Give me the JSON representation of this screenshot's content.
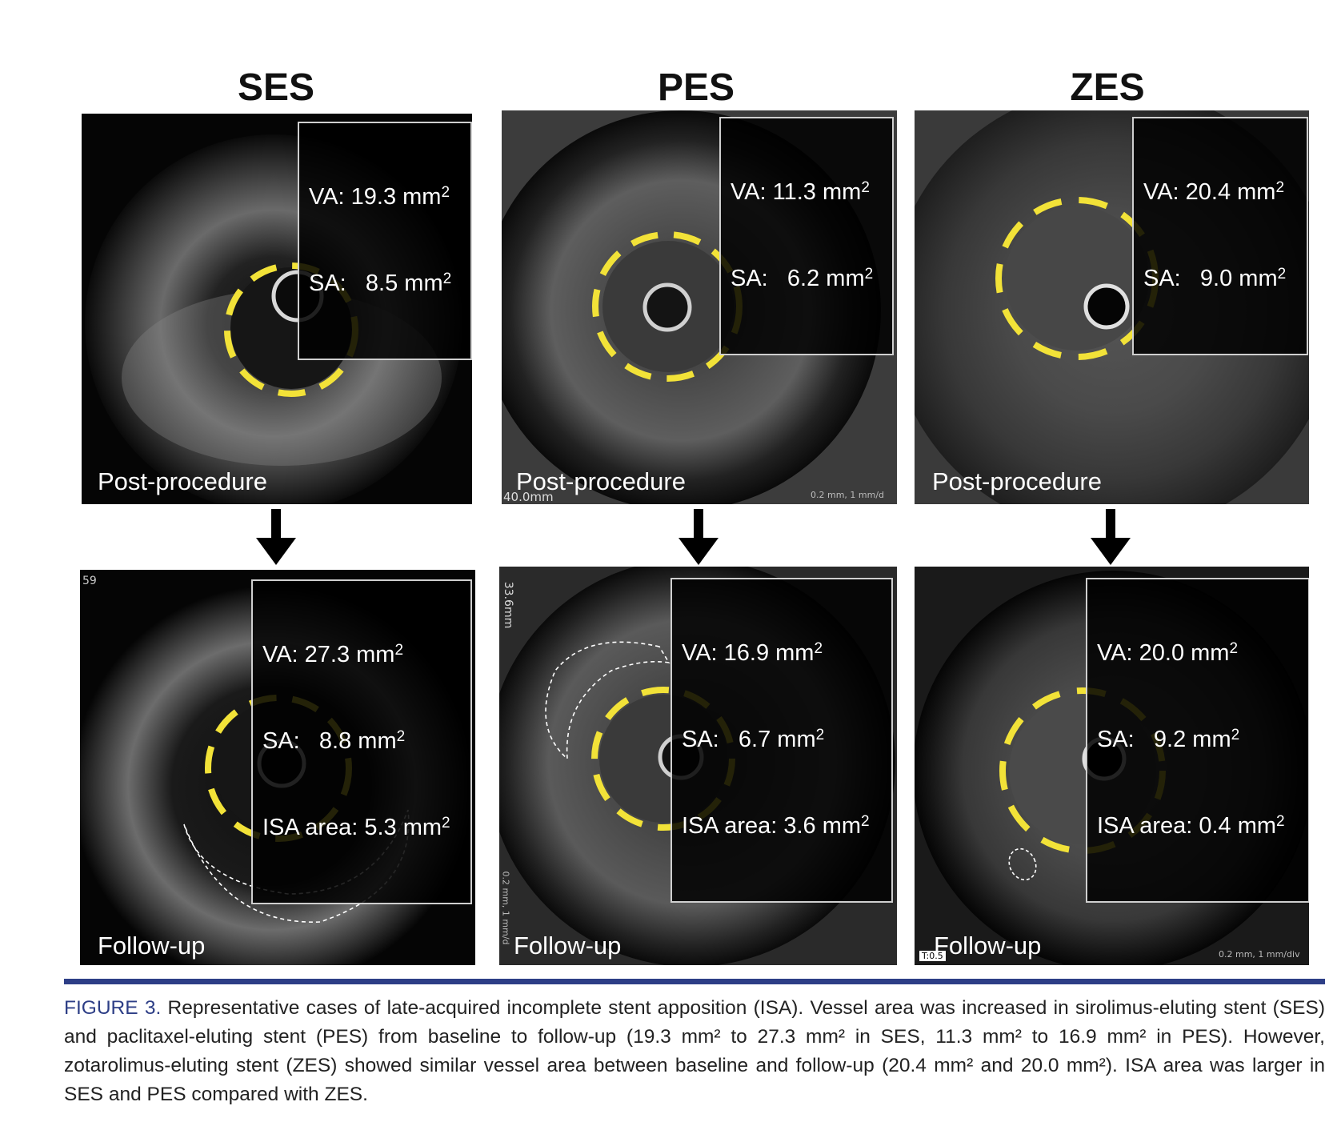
{
  "columns": [
    "SES",
    "PES",
    "ZES"
  ],
  "panels": {
    "ses_post": {
      "va": "VA: 19.3 mm",
      "sa": "SA:   8.5 mm",
      "label": "Post-procedure"
    },
    "pes_post": {
      "va": "VA: 11.3 mm",
      "sa": "SA:   6.2 mm",
      "label": "Post-procedure",
      "stamp1": "40.0mm",
      "stamp2": "0.2 mm, 1 mm/d"
    },
    "zes_post": {
      "va": "VA: 20.4 mm",
      "sa": "SA:   9.0 mm",
      "label": "Post-procedure"
    },
    "ses_fu": {
      "va": "VA: 27.3 mm",
      "sa": "SA:   8.8 mm",
      "isa": "ISA area: 5.3 mm",
      "label": "Follow-up",
      "stamp1": "59"
    },
    "pes_fu": {
      "va": "VA: 16.9 mm",
      "sa": "SA:   6.7 mm",
      "isa": "ISA area: 3.6 mm",
      "label": "Follow-up",
      "stamp1": "33.6mm",
      "stamp2": "0.2 mm, 1 mm/d"
    },
    "zes_fu": {
      "va": "VA: 20.0 mm",
      "sa": "SA:   9.2 mm",
      "isa": "ISA area: 0.4 mm",
      "label": "Follow-up",
      "stamp1": "T:0.5",
      "stamp2": "0.2 mm, 1 mm/div"
    }
  },
  "superscript": "2",
  "caption": {
    "figure_label": "FIGURE 3.",
    "text": " Representative cases of late-acquired incomplete stent apposition (ISA). Vessel area was increased in sirolimus-eluting stent (SES) and paclitaxel-eluting stent (PES) from baseline to follow-up (19.3 mm² to 27.3 mm² in SES, 11.3 mm² to 16.9 mm² in PES). However, zotarolimus-eluting stent (ZES) showed similar vessel area between baseline and follow-up (20.4 mm² and 20.0 mm²). ISA area was larger in SES and PES compared with ZES."
  },
  "colors": {
    "rule": "#2d3e86",
    "stent_outline": "#f2e238",
    "figure_label": "#2d3e86"
  }
}
